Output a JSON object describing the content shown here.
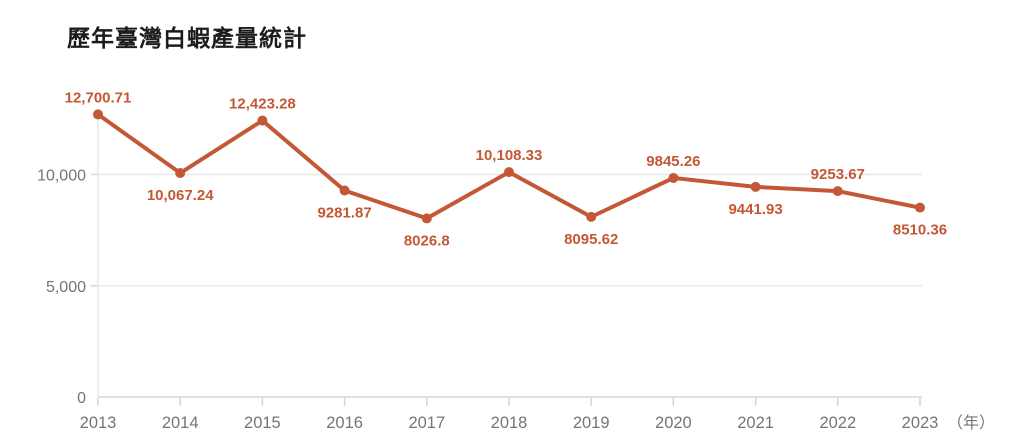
{
  "page": {
    "background": "#ffffff"
  },
  "chart_data": {
    "type": "line",
    "title": "歷年臺灣白蝦產量統計",
    "categories": [
      "2013",
      "2014",
      "2015",
      "2016",
      "2017",
      "2018",
      "2019",
      "2020",
      "2021",
      "2022",
      "2023"
    ],
    "values": [
      12700.71,
      10067.24,
      12423.28,
      9281.87,
      8026.8,
      10108.33,
      8095.62,
      9845.26,
      9441.93,
      9253.67,
      8510.36
    ],
    "value_labels": [
      "12,700.71",
      "10,067.24",
      "12,423.28",
      "9281.87",
      "8026.8",
      "10,108.33",
      "8095.62",
      "9845.26",
      "9441.93",
      "9253.67",
      "8510.36"
    ],
    "label_positions": [
      "above",
      "below",
      "above",
      "below",
      "below",
      "above",
      "below",
      "above",
      "below",
      "above",
      "below"
    ],
    "x_unit_label": "（年）",
    "y_ticks": [
      {
        "value": 0,
        "label": "0"
      },
      {
        "value": 5000,
        "label": "5,000"
      },
      {
        "value": 10000,
        "label": "10,000"
      }
    ],
    "ylim": [
      0,
      12700.71
    ],
    "grid": true,
    "legend_position": "none",
    "colors": {
      "series": "#c45836",
      "data_label": "#c45836",
      "axis_text": "#757575",
      "grid_line": "#e8e8e8",
      "axis_line": "#d6d6d6",
      "title_text": "#1c1c1c"
    }
  }
}
